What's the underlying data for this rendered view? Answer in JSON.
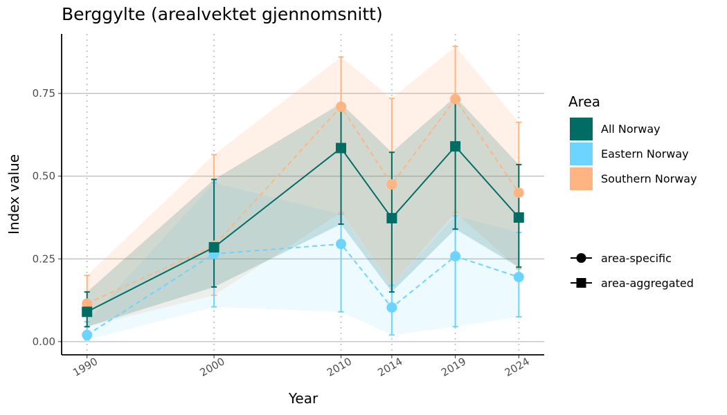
{
  "chart_data": {
    "type": "line",
    "title": "Berggylte (arealvektet gjennomsnitt)",
    "xlabel": "Year",
    "ylabel": "Index value",
    "x": [
      1990,
      2000,
      2010,
      2014,
      2019,
      2024
    ],
    "xlim": [
      1988,
      2026
    ],
    "ylim": [
      -0.04,
      0.93
    ],
    "yticks": [
      0.0,
      0.25,
      0.5,
      0.75
    ],
    "ytick_labels": [
      "0.00",
      "0.25",
      "0.50",
      "0.75"
    ],
    "grid": true,
    "legend_position": "right",
    "series": [
      {
        "name": "Southern Norway",
        "color": "#FFB482",
        "marker": "area-specific",
        "line": "dashed",
        "values": [
          0.115,
          0.29,
          0.71,
          0.475,
          0.733,
          0.45
        ],
        "lower": [
          0.045,
          0.14,
          0.39,
          0.17,
          0.39,
          0.22
        ],
        "upper": [
          0.2,
          0.565,
          0.86,
          0.735,
          0.892,
          0.663
        ]
      },
      {
        "name": "Eastern Norway",
        "color": "#6DD3FF",
        "marker": "area-specific",
        "line": "dashed",
        "values": [
          0.02,
          0.265,
          0.295,
          0.103,
          0.258,
          0.195
        ],
        "lower": [
          0.005,
          0.105,
          0.09,
          0.02,
          0.045,
          0.075
        ],
        "upper": [
          0.06,
          0.48,
          0.385,
          0.17,
          0.38,
          0.33
        ]
      },
      {
        "name": "All Norway",
        "color": "#016C64",
        "marker": "area-aggregated",
        "line": "solid",
        "values": [
          0.09,
          0.285,
          0.585,
          0.373,
          0.59,
          0.375
        ],
        "lower": [
          0.045,
          0.165,
          0.355,
          0.15,
          0.34,
          0.225
        ],
        "upper": [
          0.15,
          0.49,
          0.72,
          0.572,
          0.74,
          0.535
        ]
      }
    ],
    "legend": {
      "area_title": "Area",
      "areas": [
        {
          "label": "All Norway",
          "color": "#016C64"
        },
        {
          "label": "Eastern Norway",
          "color": "#6DD3FF"
        },
        {
          "label": "Southern Norway",
          "color": "#FFB482"
        }
      ],
      "markers": [
        {
          "label": "area-specific",
          "shape": "circle"
        },
        {
          "label": "area-aggregated",
          "shape": "square"
        }
      ]
    }
  }
}
